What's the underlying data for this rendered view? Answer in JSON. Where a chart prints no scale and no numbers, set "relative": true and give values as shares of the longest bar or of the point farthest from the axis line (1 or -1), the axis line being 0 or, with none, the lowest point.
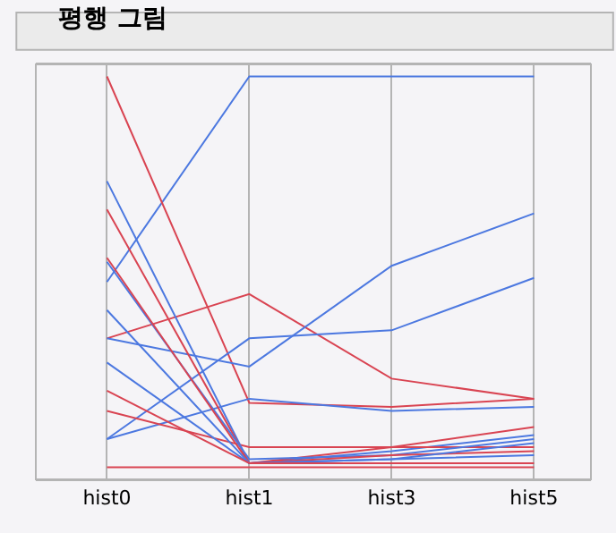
{
  "chart_data": {
    "type": "line",
    "title": "평행 그림",
    "categories": [
      "hist0",
      "hist1",
      "hist3",
      "hist5"
    ],
    "relative": true,
    "grid": "x",
    "marker": "none",
    "line_style": "solid",
    "series": [
      {
        "color": "#4c78e0",
        "values": [
          0.49,
          1,
          1,
          1
        ]
      },
      {
        "color": "#d94452",
        "values": [
          1,
          0.19,
          0.18,
          0.2
        ]
      },
      {
        "color": "#d94452",
        "values": [
          0.35,
          0.46,
          0.25,
          0.2
        ]
      },
      {
        "color": "#4c78e0",
        "values": [
          0.35,
          0.28,
          0.53,
          0.66
        ]
      },
      {
        "color": "#4c78e0",
        "values": [
          0.1,
          0.35,
          0.37,
          0.5
        ]
      },
      {
        "color": "#4c78e0",
        "values": [
          0.1,
          0.2,
          0.17,
          0.18
        ]
      },
      {
        "color": "#d94452",
        "values": [
          0.17,
          0.08,
          0.08,
          0.13
        ]
      },
      {
        "color": "#d94452",
        "values": [
          0.03,
          0.03,
          0.03,
          0.03
        ]
      },
      {
        "color": "#4c78e0",
        "values": [
          0.74,
          0.04,
          0.07,
          0.11
        ]
      },
      {
        "color": "#d94452",
        "values": [
          0.67,
          0.04,
          0.08,
          0.08
        ]
      },
      {
        "color": "#4c78e0",
        "values": [
          0.54,
          0.05,
          0.06,
          0.1
        ]
      },
      {
        "color": "#d94452",
        "values": [
          0.55,
          0.04,
          0.06,
          0.07
        ]
      },
      {
        "color": "#4c78e0",
        "values": [
          0.42,
          0.04,
          0.05,
          0.09
        ]
      },
      {
        "color": "#4c78e0",
        "values": [
          0.29,
          0.04,
          0.05,
          0.06
        ]
      },
      {
        "color": "#d94452",
        "values": [
          0.22,
          0.04,
          0.04,
          0.04
        ]
      }
    ]
  }
}
